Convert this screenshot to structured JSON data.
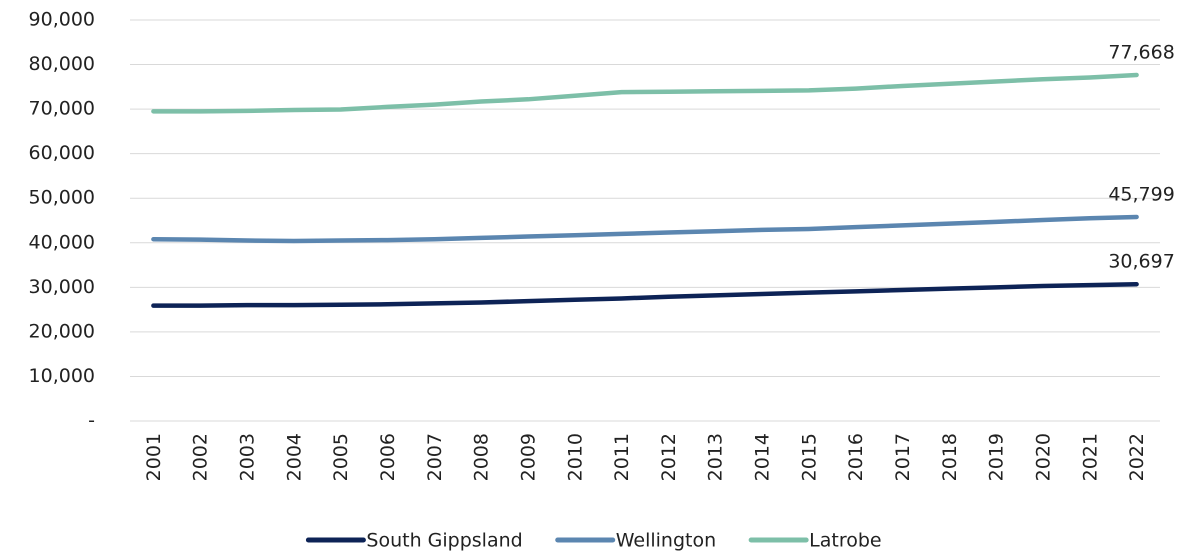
{
  "chart_data": {
    "type": "line",
    "categories": [
      "2001",
      "2002",
      "2003",
      "2004",
      "2005",
      "2006",
      "2007",
      "2008",
      "2009",
      "2010",
      "2011",
      "2012",
      "2013",
      "2014",
      "2015",
      "2016",
      "2017",
      "2018",
      "2019",
      "2020",
      "2021",
      "2022"
    ],
    "series": [
      {
        "name": "South Gippsland",
        "color": "#0d2356",
        "values": [
          25900,
          25900,
          26000,
          26000,
          26100,
          26200,
          26400,
          26600,
          26900,
          27200,
          27500,
          27900,
          28200,
          28500,
          28800,
          29100,
          29400,
          29700,
          30000,
          30300,
          30500,
          30697
        ],
        "value_labels": [
          null,
          null,
          null,
          null,
          null,
          null,
          null,
          null,
          null,
          null,
          null,
          null,
          null,
          null,
          null,
          null,
          null,
          null,
          null,
          null,
          null,
          "30,697"
        ]
      },
      {
        "name": "Wellington",
        "color": "#5b86b0",
        "values": [
          40800,
          40700,
          40500,
          40400,
          40500,
          40600,
          40800,
          41100,
          41400,
          41700,
          42000,
          42300,
          42600,
          42900,
          43100,
          43500,
          43900,
          44300,
          44700,
          45100,
          45500,
          45799
        ],
        "value_labels": [
          null,
          null,
          null,
          null,
          null,
          null,
          null,
          null,
          null,
          null,
          null,
          null,
          null,
          null,
          null,
          null,
          null,
          null,
          null,
          null,
          null,
          "45,799"
        ]
      },
      {
        "name": "Latrobe",
        "color": "#7dbfa8",
        "values": [
          69500,
          69500,
          69600,
          69800,
          69900,
          70500,
          71000,
          71700,
          72200,
          73000,
          73800,
          73900,
          74000,
          74100,
          74200,
          74600,
          75200,
          75700,
          76200,
          76700,
          77100,
          77668
        ],
        "value_labels": [
          null,
          null,
          null,
          null,
          null,
          null,
          null,
          null,
          null,
          null,
          null,
          null,
          null,
          null,
          null,
          null,
          null,
          null,
          null,
          null,
          null,
          "77,668"
        ]
      }
    ],
    "ylim": [
      0,
      90000
    ],
    "yticks": [
      {
        "value": 0,
        "label": "-"
      },
      {
        "value": 10000,
        "label": "10,000"
      },
      {
        "value": 20000,
        "label": "20,000"
      },
      {
        "value": 30000,
        "label": "30,000"
      },
      {
        "value": 40000,
        "label": "40,000"
      },
      {
        "value": 50000,
        "label": "50,000"
      },
      {
        "value": 60000,
        "label": "60,000"
      },
      {
        "value": 70000,
        "label": "70,000"
      },
      {
        "value": 80000,
        "label": "80,000"
      },
      {
        "value": 90000,
        "label": "90,000"
      }
    ],
    "grid": true,
    "legend": "bottom"
  }
}
